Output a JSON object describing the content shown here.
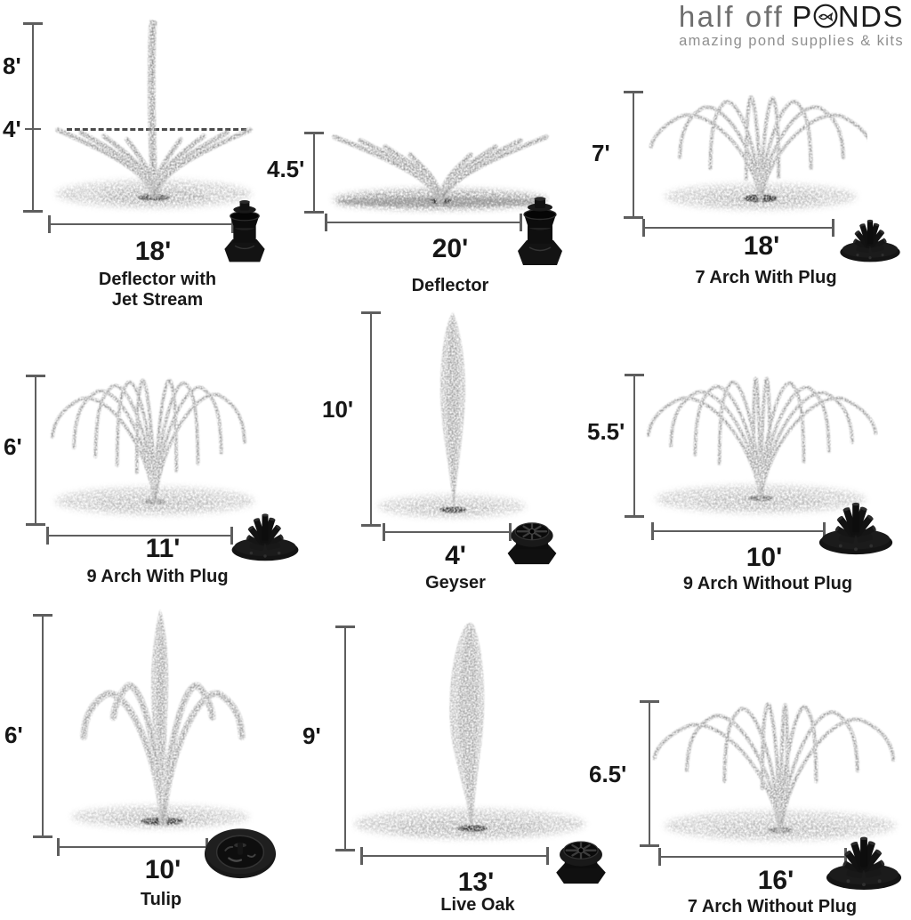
{
  "logo": {
    "brand_light": "half off",
    "brand_bold_pre": "P",
    "brand_bold_post": "NDS",
    "tagline": "amazing pond supplies & kits"
  },
  "fountains": [
    {
      "name": "Deflector with Jet Stream",
      "height": "8'",
      "height_secondary": "4'",
      "spread": "18'"
    },
    {
      "name": "Deflector",
      "height": "4.5'",
      "spread": "20'"
    },
    {
      "name": "7 Arch With Plug",
      "height": "7'",
      "spread": "18'"
    },
    {
      "name": "9 Arch With Plug",
      "height": "6'",
      "spread": "11'"
    },
    {
      "name": "Geyser",
      "height": "10'",
      "spread": "4'"
    },
    {
      "name": "9 Arch Without Plug",
      "height": "5.5'",
      "spread": "10'"
    },
    {
      "name": "Tulip",
      "height": "6'",
      "spread": "10'"
    },
    {
      "name": "Live Oak",
      "height": "9'",
      "spread": "13'"
    },
    {
      "name": "7 Arch Without Plug",
      "height": "6.5'",
      "spread": "16'"
    }
  ]
}
